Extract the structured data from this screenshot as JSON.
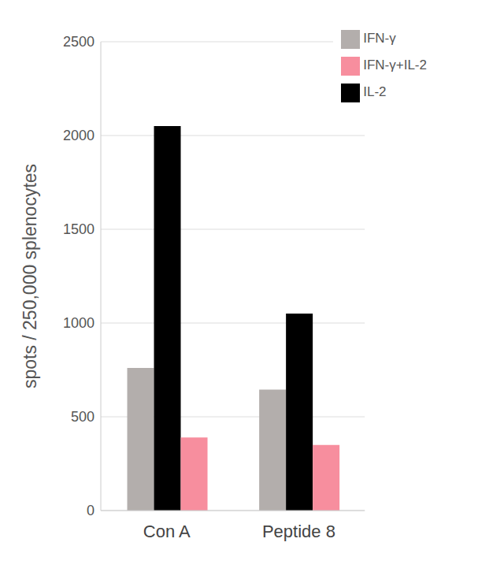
{
  "chart_data": {
    "type": "bar",
    "y_label": "spots / 250,000 splenocytes",
    "categories": [
      "Con A",
      "Peptide 8"
    ],
    "series": [
      {
        "name": "IFN-γ",
        "color": "#b3aeac",
        "values": [
          760,
          645
        ]
      },
      {
        "name": "IL-2",
        "color": "#000000",
        "values": [
          2050,
          1050
        ]
      },
      {
        "name": "IFN-γ+IL-2",
        "color": "#f78e9e",
        "values": [
          390,
          350
        ]
      }
    ],
    "ylim": [
      0,
      2500
    ],
    "yticks": [
      0,
      500,
      1000,
      1500,
      2000,
      2500
    ],
    "grid": true,
    "legend": "upper right"
  }
}
